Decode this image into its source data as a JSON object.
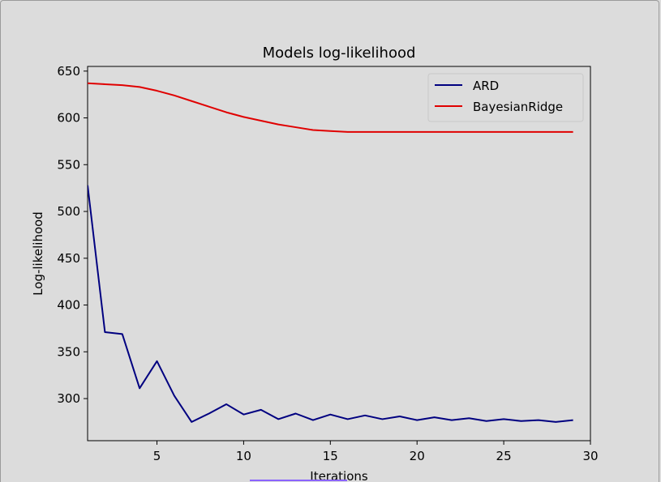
{
  "chart_data": {
    "type": "line",
    "title": "Models log-likelihood",
    "xlabel": "Iterations",
    "ylabel": "Log-likelihood",
    "xlim": [
      1,
      30
    ],
    "ylim": [
      255,
      655
    ],
    "xticks": [
      5,
      10,
      15,
      20,
      25,
      30
    ],
    "yticks": [
      300,
      350,
      400,
      450,
      500,
      550,
      600,
      650
    ],
    "legend_position": "top-right",
    "series": [
      {
        "name": "ARD",
        "color": "#000080",
        "x": [
          1,
          2,
          3,
          4,
          5,
          6,
          7,
          8,
          9,
          10,
          11,
          12,
          13,
          14,
          15,
          16,
          17,
          18,
          19,
          20,
          21,
          22,
          23,
          24,
          25,
          26,
          27,
          28,
          29
        ],
        "values": [
          528,
          371,
          369,
          311,
          340,
          303,
          275,
          284,
          294,
          283,
          288,
          278,
          284,
          277,
          283,
          278,
          282,
          278,
          281,
          277,
          280,
          277,
          279,
          276,
          278,
          276,
          277,
          275,
          277
        ]
      },
      {
        "name": "BayesianRidge",
        "color": "#e00000",
        "x": [
          1,
          2,
          3,
          4,
          5,
          6,
          7,
          8,
          9,
          10,
          11,
          12,
          13,
          14,
          15,
          16,
          17,
          18,
          19,
          20,
          21,
          22,
          23,
          24,
          25,
          26,
          27,
          28,
          29
        ],
        "values": [
          637,
          636,
          635,
          633,
          629,
          624,
          618,
          612,
          606,
          601,
          597,
          593,
          590,
          587,
          586,
          585,
          585,
          585,
          585,
          585,
          585,
          585,
          585,
          585,
          585,
          585,
          585,
          585,
          585
        ]
      }
    ]
  }
}
